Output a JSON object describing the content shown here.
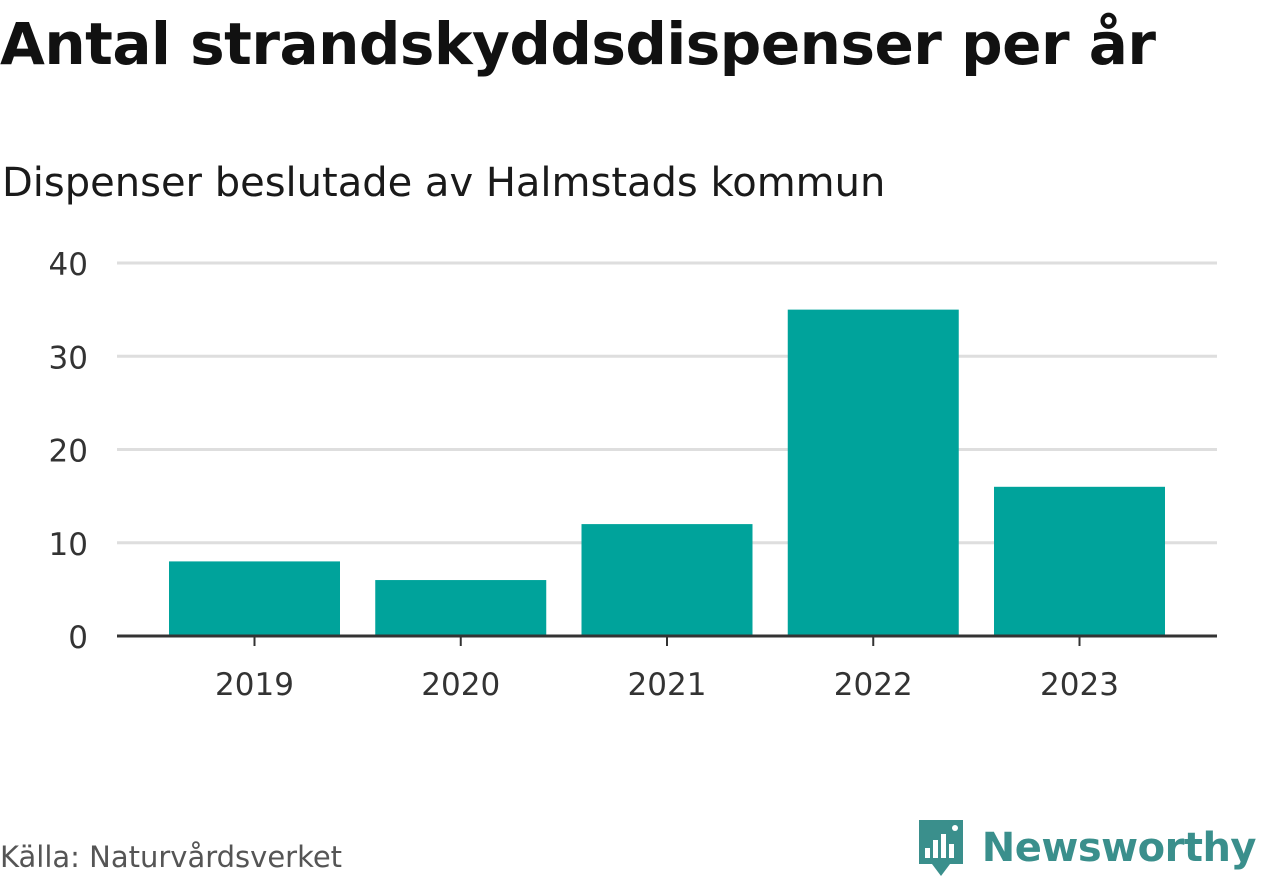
{
  "header": {
    "title": "Antal strandskyddsdispenser per år",
    "subtitle": "Dispenser beslutade av Halmstads kommun"
  },
  "footer": {
    "source": "Källa: Naturvårdsverket",
    "brand": "Newsworthy",
    "brand_icon": "bar-chart-speech-bubble-icon"
  },
  "colors": {
    "bar": "#00a39b",
    "grid": "#dedede",
    "axis": "#333333",
    "brand": "#3a8f8c"
  },
  "chart_data": {
    "type": "bar",
    "categories": [
      "2019",
      "2020",
      "2021",
      "2022",
      "2023"
    ],
    "values": [
      8,
      6,
      12,
      35,
      16
    ],
    "ylim": [
      0,
      40
    ],
    "yticks": [
      0,
      10,
      20,
      30,
      40
    ],
    "xlabel": "",
    "ylabel": "",
    "grid": true,
    "legend": "none"
  }
}
